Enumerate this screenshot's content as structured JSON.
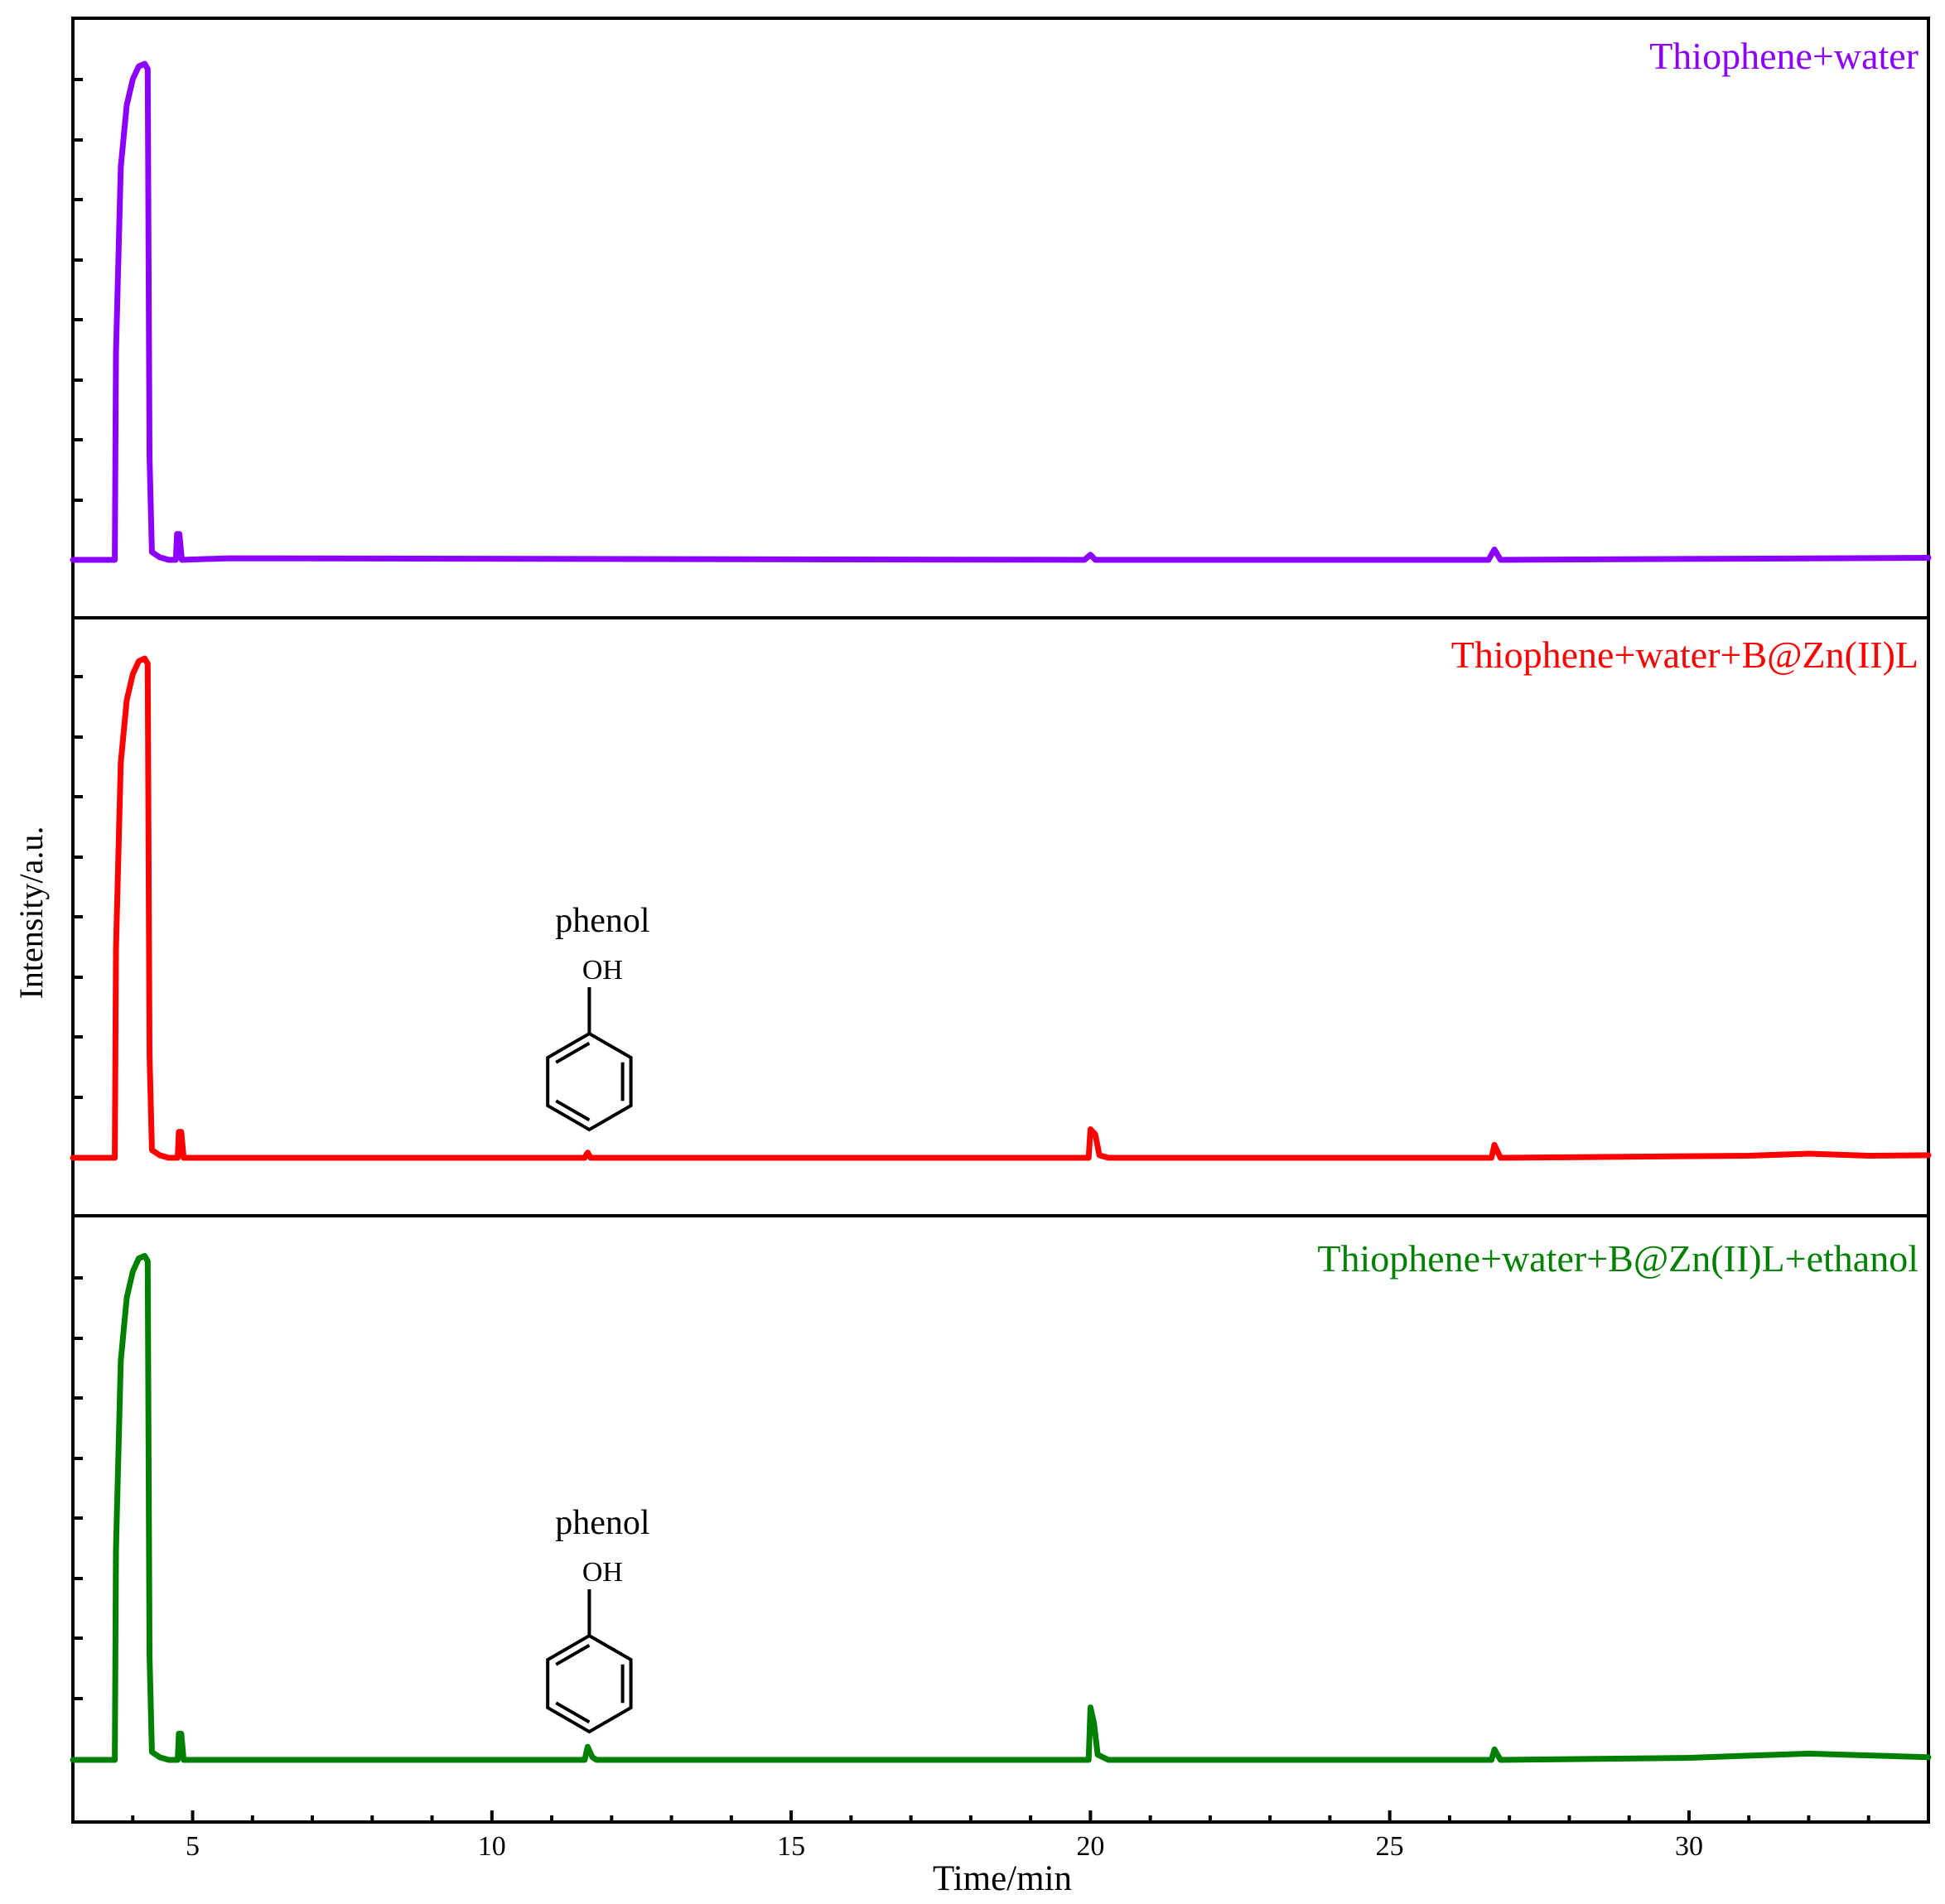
{
  "chart_data": {
    "type": "line",
    "layout": "stacked-panels",
    "xlabel": "Time/min",
    "ylabel": "Intensity/a.u.",
    "xlim": [
      3,
      34
    ],
    "xticks": [
      5,
      10,
      15,
      20,
      25,
      30
    ],
    "ylim": [
      0,
      100
    ],
    "y_tick_labels_shown": false,
    "grid": false,
    "panels": [
      {
        "name": "Thiophene+water",
        "color": "#8B00FF",
        "legend_position": "top-right",
        "annotations": [],
        "points": [
          [
            3.0,
            0
          ],
          [
            3.7,
            0
          ],
          [
            3.72,
            40
          ],
          [
            3.8,
            76
          ],
          [
            3.9,
            88
          ],
          [
            4.0,
            93
          ],
          [
            4.1,
            95.5
          ],
          [
            4.2,
            96
          ],
          [
            4.25,
            95
          ],
          [
            4.28,
            20
          ],
          [
            4.32,
            1.5
          ],
          [
            4.45,
            0.5
          ],
          [
            4.6,
            0
          ],
          [
            4.72,
            0
          ],
          [
            4.74,
            5
          ],
          [
            4.78,
            5
          ],
          [
            4.82,
            0
          ],
          [
            5.6,
            0.3
          ],
          [
            19.9,
            0
          ],
          [
            20.0,
            1
          ],
          [
            20.08,
            0
          ],
          [
            26.65,
            0
          ],
          [
            26.75,
            2
          ],
          [
            26.85,
            0
          ],
          [
            34.0,
            0.4
          ]
        ]
      },
      {
        "name": "Thiophene+water+B@Zn(II)L",
        "color": "#FF0000",
        "legend_position": "top-right",
        "annotations": [
          {
            "label": "phenol",
            "group": "OH",
            "x": 11.6
          }
        ],
        "points": [
          [
            3.0,
            0
          ],
          [
            3.7,
            0
          ],
          [
            3.72,
            40
          ],
          [
            3.8,
            76
          ],
          [
            3.9,
            88
          ],
          [
            4.0,
            93
          ],
          [
            4.1,
            95.5
          ],
          [
            4.2,
            96
          ],
          [
            4.25,
            95
          ],
          [
            4.28,
            20
          ],
          [
            4.32,
            1.5
          ],
          [
            4.45,
            0.5
          ],
          [
            4.6,
            0
          ],
          [
            4.75,
            0
          ],
          [
            4.77,
            5
          ],
          [
            4.81,
            5
          ],
          [
            4.85,
            0
          ],
          [
            11.55,
            0
          ],
          [
            11.6,
            1
          ],
          [
            11.65,
            0
          ],
          [
            19.97,
            0
          ],
          [
            20.0,
            5.5
          ],
          [
            20.08,
            4.5
          ],
          [
            20.15,
            0.5
          ],
          [
            20.3,
            0
          ],
          [
            26.7,
            0
          ],
          [
            26.75,
            2.5
          ],
          [
            26.85,
            0
          ],
          [
            31.0,
            0.4
          ],
          [
            32.0,
            0.8
          ],
          [
            33.0,
            0.4
          ],
          [
            34.0,
            0.5
          ]
        ]
      },
      {
        "name": "Thiophene+water+B@Zn(II)L+ethanol",
        "color": "#008000",
        "legend_position": "top-right",
        "annotations": [
          {
            "label": "phenol",
            "group": "OH",
            "x": 11.6
          }
        ],
        "points": [
          [
            3.0,
            0
          ],
          [
            3.7,
            0
          ],
          [
            3.72,
            40
          ],
          [
            3.8,
            76
          ],
          [
            3.9,
            88
          ],
          [
            4.0,
            93
          ],
          [
            4.1,
            95.5
          ],
          [
            4.2,
            96
          ],
          [
            4.25,
            95
          ],
          [
            4.28,
            20
          ],
          [
            4.32,
            1.5
          ],
          [
            4.45,
            0.5
          ],
          [
            4.6,
            0
          ],
          [
            4.75,
            0
          ],
          [
            4.77,
            5
          ],
          [
            4.81,
            5
          ],
          [
            4.85,
            0
          ],
          [
            11.55,
            0
          ],
          [
            11.6,
            2.5
          ],
          [
            11.68,
            0.5
          ],
          [
            11.75,
            0
          ],
          [
            19.97,
            0
          ],
          [
            20.0,
            10
          ],
          [
            20.06,
            7
          ],
          [
            20.12,
            1
          ],
          [
            20.3,
            0
          ],
          [
            26.7,
            0
          ],
          [
            26.75,
            2
          ],
          [
            26.85,
            0
          ],
          [
            30.0,
            0.4
          ],
          [
            31.0,
            0.8
          ],
          [
            32.0,
            1.2
          ],
          [
            32.6,
            1.0
          ],
          [
            34.0,
            0.5
          ]
        ]
      }
    ]
  }
}
